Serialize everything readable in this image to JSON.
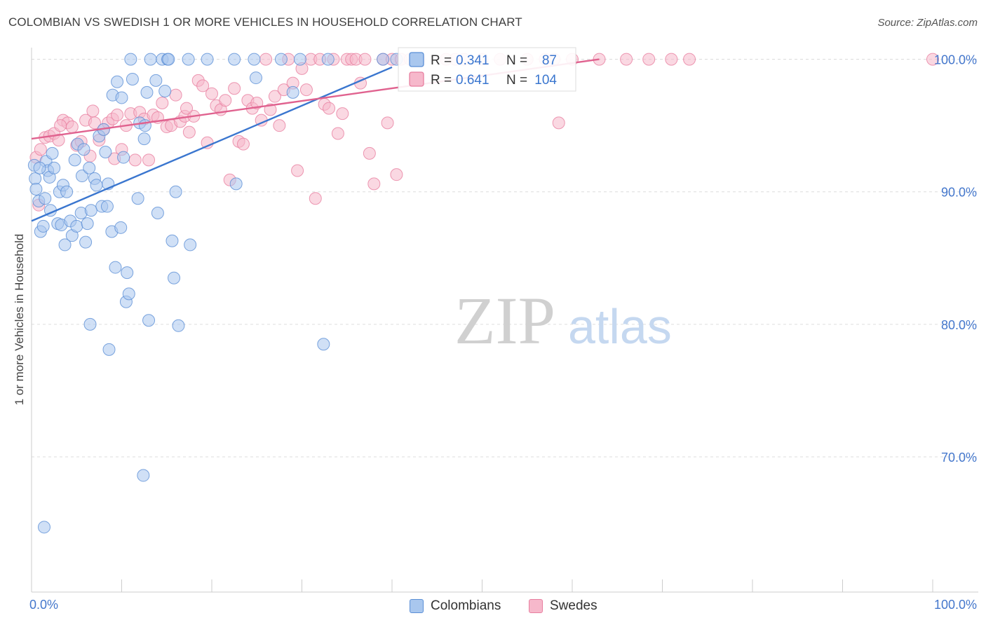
{
  "header": {
    "title": "COLOMBIAN VS SWEDISH 1 OR MORE VEHICLES IN HOUSEHOLD CORRELATION CHART",
    "source": "Source: ZipAtlas.com"
  },
  "watermark": {
    "zip": "ZIP",
    "atlas": "atlas"
  },
  "colors": {
    "colombians_fill": "#a9c7ee",
    "colombians_stroke": "#5b8fd6",
    "colombians_line": "#3a76cf",
    "swedes_fill": "#f6b8cb",
    "swedes_stroke": "#e87fa0",
    "swedes_line": "#e0628f",
    "tick_label": "#4477cc",
    "grid": "#dddddd"
  },
  "stats": {
    "colombians": {
      "r_label": "R =",
      "r_value": "0.341",
      "n_label": "N =",
      "n_value": "87"
    },
    "swedes": {
      "r_label": "R =",
      "r_value": "0.641",
      "n_label": "N =",
      "n_value": "104"
    }
  },
  "chart_data": {
    "type": "scatter",
    "title": "COLOMBIAN VS SWEDISH 1 OR MORE VEHICLES IN HOUSEHOLD CORRELATION CHART",
    "xlabel": "",
    "ylabel": "1 or more Vehicles in Household",
    "xlim": [
      0,
      100
    ],
    "ylim": [
      59.8,
      101.3
    ],
    "x_tick_labels": [
      "0.0%",
      "100.0%"
    ],
    "y_ticks": [
      70,
      80,
      90,
      100
    ],
    "y_tick_labels": [
      "70.0%",
      "80.0%",
      "90.0%",
      "100.0%"
    ],
    "legend": [
      "Colombians",
      "Swedes"
    ],
    "series": [
      {
        "name": "Colombians",
        "trend": {
          "x0": 0,
          "y0": 87.8,
          "x1": 40,
          "y1": 99.4
        },
        "points": [
          [
            0.3,
            92.0
          ],
          [
            0.4,
            91.0
          ],
          [
            0.5,
            90.2
          ],
          [
            0.8,
            89.3
          ],
          [
            1.0,
            87.0
          ],
          [
            1.3,
            87.4
          ],
          [
            1.5,
            89.5
          ],
          [
            1.6,
            92.3
          ],
          [
            1.8,
            91.6
          ],
          [
            2.0,
            91.1
          ],
          [
            2.3,
            92.9
          ],
          [
            2.5,
            91.8
          ],
          [
            2.9,
            87.6
          ],
          [
            3.1,
            90.0
          ],
          [
            3.3,
            87.5
          ],
          [
            3.5,
            90.5
          ],
          [
            3.7,
            86.0
          ],
          [
            3.9,
            90.0
          ],
          [
            4.3,
            87.8
          ],
          [
            4.5,
            86.7
          ],
          [
            4.8,
            92.4
          ],
          [
            5.0,
            87.4
          ],
          [
            5.1,
            93.6
          ],
          [
            5.5,
            88.4
          ],
          [
            5.6,
            91.2
          ],
          [
            5.8,
            93.2
          ],
          [
            6.0,
            86.2
          ],
          [
            6.2,
            87.6
          ],
          [
            6.4,
            91.8
          ],
          [
            6.6,
            88.6
          ],
          [
            7.0,
            91.0
          ],
          [
            7.2,
            90.5
          ],
          [
            7.5,
            94.2
          ],
          [
            7.8,
            88.9
          ],
          [
            8.0,
            94.7
          ],
          [
            8.2,
            93.0
          ],
          [
            8.4,
            88.9
          ],
          [
            8.5,
            90.6
          ],
          [
            8.6,
            78.1
          ],
          [
            8.9,
            87.0
          ],
          [
            9.0,
            97.3
          ],
          [
            9.3,
            84.3
          ],
          [
            9.5,
            98.3
          ],
          [
            9.9,
            87.3
          ],
          [
            10.0,
            97.1
          ],
          [
            10.2,
            92.6
          ],
          [
            10.5,
            81.7
          ],
          [
            10.6,
            83.9
          ],
          [
            10.8,
            82.3
          ],
          [
            11.0,
            100.0
          ],
          [
            11.2,
            98.5
          ],
          [
            11.8,
            89.5
          ],
          [
            12.0,
            95.2
          ],
          [
            12.4,
            68.6
          ],
          [
            12.5,
            94.0
          ],
          [
            12.6,
            95.0
          ],
          [
            12.8,
            97.5
          ],
          [
            13.0,
            80.3
          ],
          [
            13.2,
            100.0
          ],
          [
            13.8,
            98.4
          ],
          [
            14.0,
            88.4
          ],
          [
            14.5,
            100.0
          ],
          [
            14.8,
            97.6
          ],
          [
            15.1,
            100.0
          ],
          [
            15.2,
            100.0
          ],
          [
            15.6,
            86.3
          ],
          [
            15.8,
            83.5
          ],
          [
            16.0,
            90.0
          ],
          [
            16.3,
            79.9
          ],
          [
            17.4,
            100.0
          ],
          [
            17.6,
            86.0
          ],
          [
            19.5,
            100.0
          ],
          [
            22.5,
            100.0
          ],
          [
            22.7,
            90.6
          ],
          [
            24.7,
            100.0
          ],
          [
            24.9,
            98.6
          ],
          [
            27.7,
            100.0
          ],
          [
            29.0,
            97.5
          ],
          [
            29.8,
            100.0
          ],
          [
            32.4,
            78.5
          ],
          [
            32.9,
            100.0
          ],
          [
            39.0,
            100.0
          ],
          [
            40.5,
            100.0
          ],
          [
            1.4,
            64.7
          ],
          [
            6.5,
            80.0
          ],
          [
            2.1,
            88.6
          ],
          [
            0.9,
            91.8
          ]
        ]
      },
      {
        "name": "Swedes",
        "trend": {
          "x0": 0,
          "y0": 94.0,
          "x1": 63,
          "y1": 100.0
        },
        "points": [
          [
            0.5,
            92.6
          ],
          [
            0.8,
            89.0
          ],
          [
            1.0,
            93.2
          ],
          [
            1.5,
            94.1
          ],
          [
            2.0,
            94.2
          ],
          [
            2.5,
            94.4
          ],
          [
            3.0,
            93.9
          ],
          [
            3.5,
            95.4
          ],
          [
            4.0,
            95.2
          ],
          [
            4.5,
            94.9
          ],
          [
            5.0,
            93.5
          ],
          [
            5.5,
            93.8
          ],
          [
            6.0,
            95.4
          ],
          [
            6.5,
            92.7
          ],
          [
            7.0,
            95.2
          ],
          [
            7.5,
            93.9
          ],
          [
            8.0,
            94.7
          ],
          [
            8.5,
            95.2
          ],
          [
            9.0,
            95.5
          ],
          [
            9.5,
            95.8
          ],
          [
            10.0,
            93.2
          ],
          [
            10.5,
            95.0
          ],
          [
            11.0,
            95.9
          ],
          [
            11.5,
            92.4
          ],
          [
            12.0,
            96.0
          ],
          [
            12.5,
            95.5
          ],
          [
            13.0,
            92.4
          ],
          [
            13.5,
            95.8
          ],
          [
            14.0,
            95.6
          ],
          [
            14.5,
            96.7
          ],
          [
            15.0,
            94.9
          ],
          [
            15.5,
            95.0
          ],
          [
            16.0,
            97.3
          ],
          [
            16.5,
            95.3
          ],
          [
            17.0,
            95.7
          ],
          [
            17.5,
            94.5
          ],
          [
            18.0,
            95.7
          ],
          [
            18.5,
            98.4
          ],
          [
            19.0,
            98.0
          ],
          [
            19.5,
            93.7
          ],
          [
            20.0,
            97.4
          ],
          [
            20.5,
            96.5
          ],
          [
            21.0,
            96.2
          ],
          [
            21.5,
            96.9
          ],
          [
            22.0,
            90.9
          ],
          [
            22.5,
            97.8
          ],
          [
            23.0,
            93.8
          ],
          [
            23.5,
            93.6
          ],
          [
            24.0,
            96.9
          ],
          [
            24.5,
            96.3
          ],
          [
            25.0,
            96.7
          ],
          [
            25.5,
            95.4
          ],
          [
            26.0,
            100.0
          ],
          [
            26.5,
            96.2
          ],
          [
            27.0,
            97.2
          ],
          [
            27.5,
            95.0
          ],
          [
            28.0,
            97.7
          ],
          [
            28.5,
            100.0
          ],
          [
            29.0,
            98.2
          ],
          [
            29.5,
            91.6
          ],
          [
            30.0,
            99.3
          ],
          [
            30.5,
            97.7
          ],
          [
            31.0,
            100.0
          ],
          [
            31.5,
            89.5
          ],
          [
            32.0,
            100.0
          ],
          [
            32.5,
            96.6
          ],
          [
            33.0,
            96.3
          ],
          [
            33.5,
            100.0
          ],
          [
            34.0,
            94.4
          ],
          [
            34.5,
            95.9
          ],
          [
            35.0,
            100.0
          ],
          [
            35.5,
            100.0
          ],
          [
            36.0,
            100.0
          ],
          [
            36.5,
            98.2
          ],
          [
            37.0,
            100.0
          ],
          [
            37.5,
            92.9
          ],
          [
            38.0,
            90.6
          ],
          [
            39.0,
            100.0
          ],
          [
            39.5,
            95.2
          ],
          [
            40.0,
            100.0
          ],
          [
            40.5,
            91.3
          ],
          [
            41.0,
            100.0
          ],
          [
            42.0,
            100.0
          ],
          [
            43.0,
            100.0
          ],
          [
            46.0,
            100.0
          ],
          [
            47.0,
            100.0
          ],
          [
            48.0,
            100.0
          ],
          [
            50.0,
            100.0
          ],
          [
            52.0,
            100.0
          ],
          [
            55.0,
            100.0
          ],
          [
            57.0,
            100.0
          ],
          [
            58.0,
            100.0
          ],
          [
            58.5,
            95.2
          ],
          [
            60.0,
            100.0
          ],
          [
            63.0,
            100.0
          ],
          [
            66.0,
            100.0
          ],
          [
            68.5,
            100.0
          ],
          [
            71.0,
            100.0
          ],
          [
            73.0,
            100.0
          ],
          [
            100.0,
            100.0
          ],
          [
            3.2,
            95.0
          ],
          [
            6.8,
            96.1
          ],
          [
            9.2,
            92.5
          ],
          [
            17.2,
            96.3
          ]
        ]
      }
    ]
  },
  "legend_bottom": {
    "colombians": "Colombians",
    "swedes": "Swedes"
  }
}
